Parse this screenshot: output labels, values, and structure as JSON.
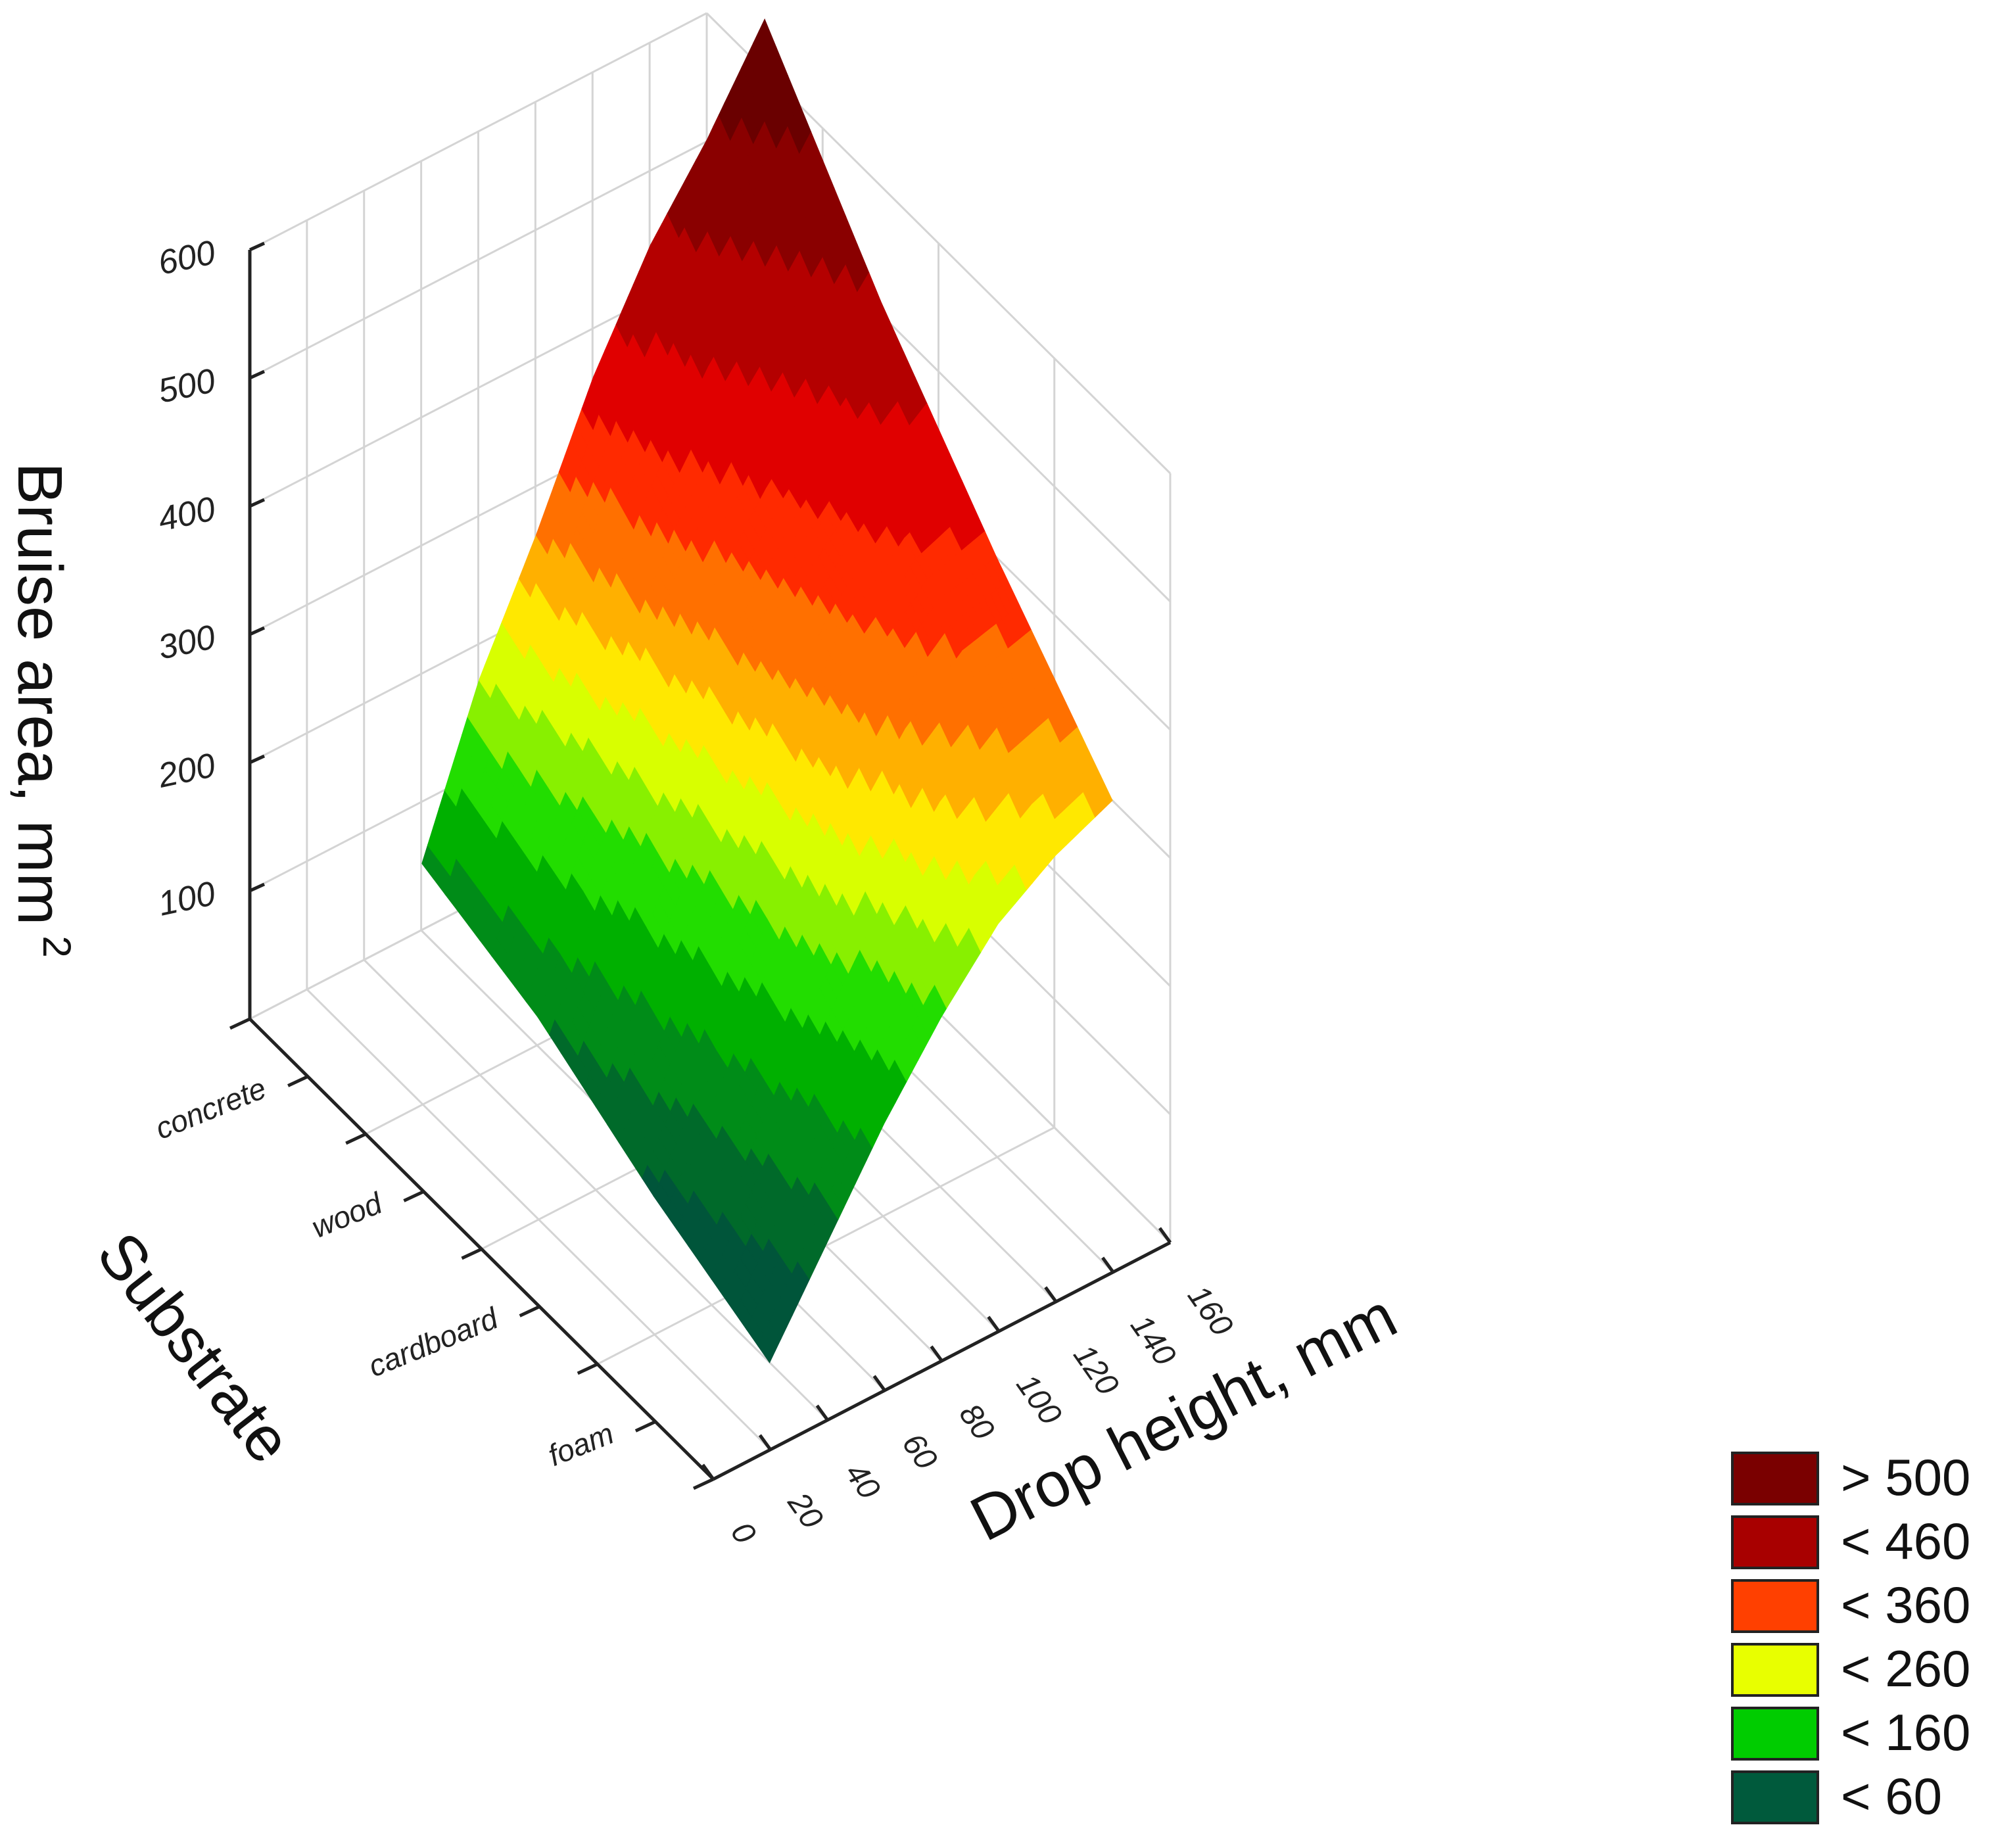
{
  "chart_data": {
    "type": "surface-3d",
    "x_axis": {
      "label": "Drop height, mm",
      "range": [
        0,
        160
      ],
      "ticks": [
        0,
        20,
        40,
        60,
        80,
        100,
        120,
        140,
        160
      ]
    },
    "y_axis": {
      "label": "Substrate",
      "categories": [
        "concrete",
        "wood",
        "cardboard",
        "foam"
      ]
    },
    "z_axis": {
      "label": "Bruise area, mm",
      "label_sup": "2",
      "range": [
        0,
        600
      ],
      "ticks": [
        100,
        200,
        300,
        400,
        500,
        600
      ]
    },
    "grid": true,
    "legend_position": "bottom-right",
    "legend": [
      {
        "label": "> 500",
        "color": "#7a0000"
      },
      {
        "label": "< 460",
        "color": "#a80000"
      },
      {
        "label": "< 360",
        "color": "#ff4000"
      },
      {
        "label": "< 260",
        "color": "#e8ff00"
      },
      {
        "label": "< 160",
        "color": "#00cc00"
      },
      {
        "label": "< 60",
        "color": "#005a3c"
      }
    ],
    "surface": {
      "drop_heights": [
        40,
        60,
        80,
        100,
        120,
        140,
        160
      ],
      "substrates": [
        "concrete",
        "wood",
        "cardboard",
        "foam"
      ],
      "bruise_area": [
        [
          120,
          240,
          330,
          430,
          510,
          570,
          640
        ],
        [
          90,
          190,
          270,
          350,
          410,
          460,
          510
        ],
        [
          40,
          120,
          210,
          290,
          350,
          390,
          400
        ],
        [
          0,
          70,
          140,
          200,
          250,
          280,
          300
        ]
      ]
    }
  }
}
